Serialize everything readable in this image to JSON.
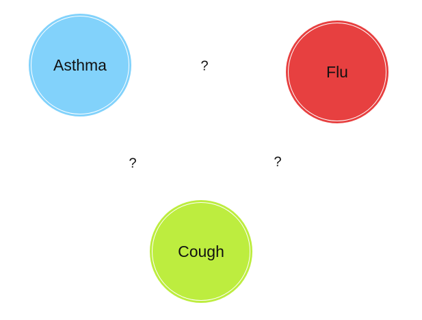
{
  "nodes": {
    "asthma": {
      "label": "Asthma",
      "color": "#82d2fb"
    },
    "flu": {
      "label": "Flu",
      "color": "#e74040"
    },
    "cough": {
      "label": "Cough",
      "color": "#bded3f"
    }
  },
  "edges": {
    "asthma_flu": {
      "label": "?"
    },
    "asthma_cough": {
      "label": "?"
    },
    "flu_cough": {
      "label": "?"
    }
  }
}
